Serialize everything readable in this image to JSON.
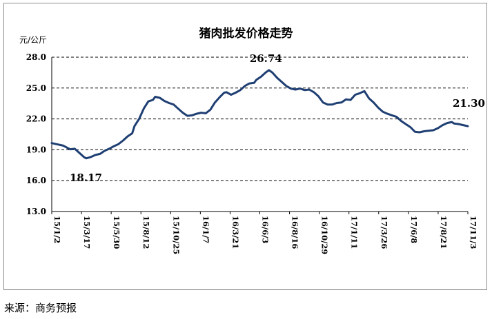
{
  "title": "猪肉批发价格走势",
  "unit": "元/公斤",
  "source": "来源：商务预报",
  "chart_data": {
    "type": "line",
    "title": "猪肉批发价格走势",
    "ylabel": "元/公斤",
    "ylim": [
      13.0,
      28.0
    ],
    "yticks": [
      "13.0",
      "16.0",
      "19.0",
      "22.0",
      "25.0",
      "28.0"
    ],
    "grid": "horizontal dashed",
    "line_color": "#1f3f73",
    "x_tick_labels": [
      "15/1/2",
      "15/3/17",
      "15/5/30",
      "15/8/12",
      "15/10/25",
      "16/1/7",
      "16/3/21",
      "16/6/3",
      "16/8/16",
      "16/10/29",
      "17/1/11",
      "17/3/26",
      "17/6/8",
      "17/8/21",
      "17/11/3"
    ],
    "series": [
      {
        "values": [
          [
            0,
            19.65
          ],
          [
            2,
            19.55
          ],
          [
            5,
            19.4
          ],
          [
            8,
            19.05
          ],
          [
            10,
            19.1
          ],
          [
            12,
            18.7
          ],
          [
            14,
            18.3
          ],
          [
            15,
            18.17
          ],
          [
            17,
            18.3
          ],
          [
            19,
            18.5
          ],
          [
            21,
            18.6
          ],
          [
            23,
            18.9
          ],
          [
            25,
            19.1
          ],
          [
            27,
            19.35
          ],
          [
            29,
            19.55
          ],
          [
            31,
            19.9
          ],
          [
            33,
            20.3
          ],
          [
            35,
            20.6
          ],
          [
            36,
            21.3
          ],
          [
            38,
            22.0
          ],
          [
            40,
            23.0
          ],
          [
            42,
            23.7
          ],
          [
            44,
            23.85
          ],
          [
            45,
            24.15
          ],
          [
            47,
            24.05
          ],
          [
            49,
            23.75
          ],
          [
            51,
            23.55
          ],
          [
            53,
            23.4
          ],
          [
            55,
            23.0
          ],
          [
            57,
            22.6
          ],
          [
            59,
            22.3
          ],
          [
            61,
            22.35
          ],
          [
            63,
            22.5
          ],
          [
            65,
            22.6
          ],
          [
            67,
            22.55
          ],
          [
            69,
            22.9
          ],
          [
            71,
            23.6
          ],
          [
            73,
            24.1
          ],
          [
            75,
            24.55
          ],
          [
            76,
            24.6
          ],
          [
            78,
            24.35
          ],
          [
            80,
            24.55
          ],
          [
            82,
            24.8
          ],
          [
            84,
            25.2
          ],
          [
            86,
            25.45
          ],
          [
            88,
            25.5
          ],
          [
            89,
            25.8
          ],
          [
            91,
            26.1
          ],
          [
            93,
            26.5
          ],
          [
            94.5,
            26.74
          ],
          [
            96,
            26.5
          ],
          [
            98,
            26.0
          ],
          [
            100,
            25.6
          ],
          [
            102,
            25.2
          ],
          [
            104,
            24.95
          ],
          [
            106,
            24.85
          ],
          [
            108,
            24.95
          ],
          [
            110,
            24.8
          ],
          [
            112,
            24.85
          ],
          [
            114,
            24.6
          ],
          [
            116,
            24.2
          ],
          [
            118,
            23.6
          ],
          [
            120,
            23.4
          ],
          [
            122,
            23.4
          ],
          [
            124,
            23.55
          ],
          [
            126,
            23.6
          ],
          [
            128,
            23.9
          ],
          [
            130,
            23.85
          ],
          [
            132,
            24.35
          ],
          [
            134,
            24.5
          ],
          [
            136,
            24.7
          ],
          [
            138,
            24.0
          ],
          [
            140,
            23.6
          ],
          [
            142,
            23.1
          ],
          [
            144,
            22.7
          ],
          [
            146,
            22.5
          ],
          [
            148,
            22.35
          ],
          [
            150,
            22.2
          ],
          [
            152,
            21.8
          ],
          [
            154,
            21.5
          ],
          [
            156,
            21.2
          ],
          [
            158,
            20.75
          ],
          [
            160,
            20.7
          ],
          [
            162,
            20.8
          ],
          [
            164,
            20.85
          ],
          [
            166,
            20.9
          ],
          [
            168,
            21.1
          ],
          [
            170,
            21.4
          ],
          [
            172,
            21.6
          ],
          [
            174,
            21.7
          ],
          [
            175,
            21.55
          ],
          [
            177,
            21.5
          ],
          [
            179,
            21.4
          ],
          [
            181,
            21.3
          ]
        ]
      }
    ],
    "annotations": [
      {
        "text": "18.17",
        "x": 15,
        "y": 18.17
      },
      {
        "text": "26.74",
        "x": 94.5,
        "y": 26.74
      },
      {
        "text": "21.30",
        "x": 181,
        "y": 21.3
      }
    ]
  }
}
